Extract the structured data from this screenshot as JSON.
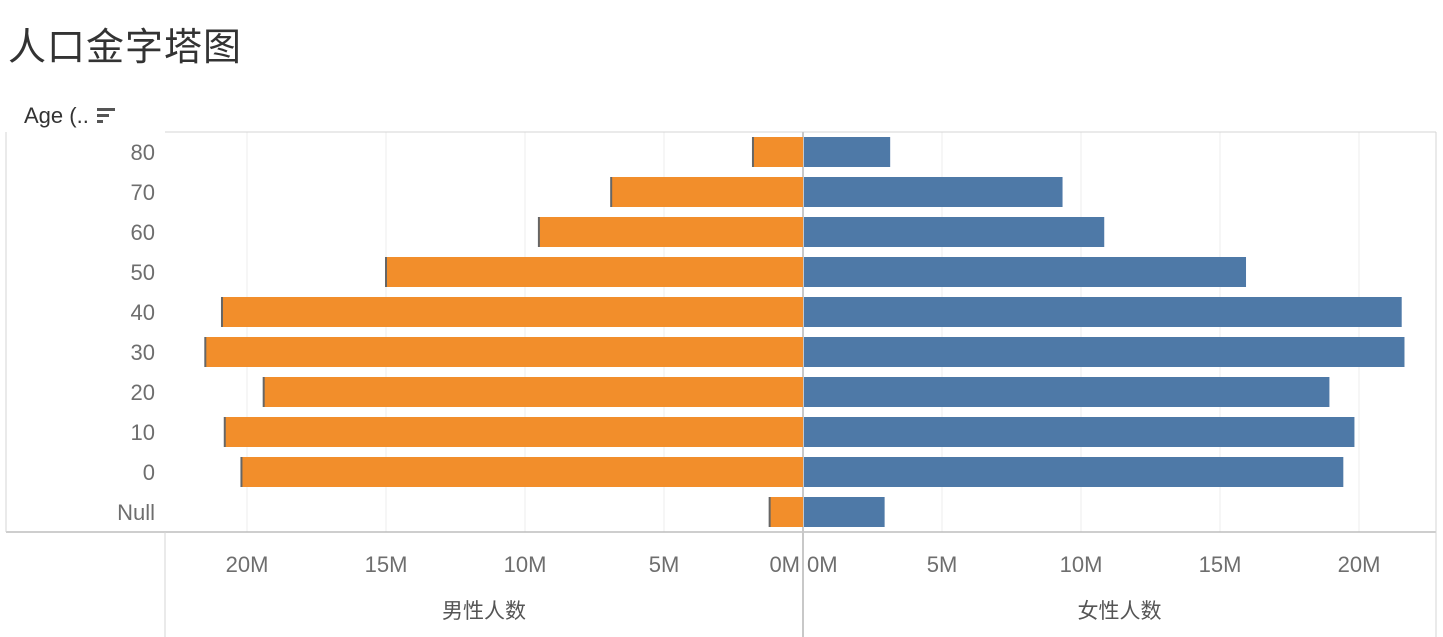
{
  "page_title": "人口金字塔图",
  "row_header": "Age (..",
  "sort_icon": "sort-descending-icon",
  "colors": {
    "male": "#f28e2b",
    "female": "#4e79a7",
    "divider": "#c8c8c8",
    "grid": "#ececec"
  },
  "chart_data": {
    "type": "bar",
    "orientation": "horizontal",
    "layout": "population-pyramid",
    "categories": [
      "80",
      "70",
      "60",
      "50",
      "40",
      "30",
      "20",
      "10",
      "0",
      "Null"
    ],
    "series": [
      {
        "name": "男性人数",
        "values": [
          1.8,
          6.9,
          9.5,
          15.0,
          20.9,
          21.5,
          19.4,
          20.8,
          20.2,
          1.2
        ]
      },
      {
        "name": "女性人数",
        "values": [
          3.1,
          9.3,
          10.8,
          15.9,
          21.5,
          21.6,
          18.9,
          19.8,
          19.4,
          2.9
        ]
      }
    ],
    "unit": "M",
    "xlim": [
      0,
      22
    ],
    "xticks": [
      0,
      5,
      10,
      15,
      20
    ],
    "xtick_labels": [
      "0M",
      "5M",
      "10M",
      "15M",
      "20M"
    ],
    "left_axis_label": "男性人数",
    "right_axis_label": "女性人数",
    "grid": true
  }
}
